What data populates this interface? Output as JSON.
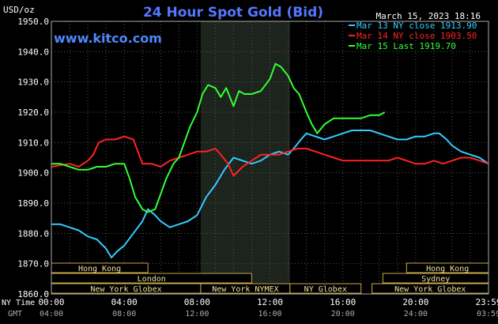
{
  "chart_data": {
    "type": "line",
    "title": "24 Hour Spot Gold (Bid)",
    "ylabel": "USD/oz",
    "timestamp": "March 15, 2023 18:16",
    "watermark": "www.kitco.com",
    "ylim": [
      1860,
      1950
    ],
    "y_ticks": [
      "1860.0",
      "1870.0",
      "1880.0",
      "1890.0",
      "1900.0",
      "1910.0",
      "1920.0",
      "1930.0",
      "1940.0",
      "1950.0"
    ],
    "xlim": [
      0,
      24
    ],
    "x_row_labels": {
      "ny": "NY Time",
      "gmt": "GMT"
    },
    "x_ticks": [
      {
        "x": 0,
        "ny": "00:00",
        "gmt": "04:00"
      },
      {
        "x": 4,
        "ny": "04:00",
        "gmt": "08:00"
      },
      {
        "x": 8,
        "ny": "08:00",
        "gmt": "12:00"
      },
      {
        "x": 12,
        "ny": "12:00",
        "gmt": "16:00"
      },
      {
        "x": 16,
        "ny": "16:00",
        "gmt": "20:00"
      },
      {
        "x": 20,
        "ny": "20:00",
        "gmt": "24:00"
      },
      {
        "x": 24,
        "ny": "23:59",
        "gmt": "03:59"
      }
    ],
    "shaded_range": [
      8.2,
      13.1
    ],
    "sessions": [
      {
        "label": "Hong Kong",
        "start": 0,
        "end": 5.3,
        "row": 1
      },
      {
        "label": "London",
        "start": 0,
        "end": 11,
        "row": 2
      },
      {
        "label": "New York Globex",
        "start": 0,
        "end": 8.2,
        "row": 3
      },
      {
        "label": "New York NYMEX",
        "start": 8.2,
        "end": 13.1,
        "row": 3
      },
      {
        "label": "NY Globex",
        "start": 13.1,
        "end": 17,
        "row": 3
      },
      {
        "label": "Hong Kong",
        "start": 19.5,
        "end": 24,
        "row": 1
      },
      {
        "label": "Sydney",
        "start": 18.2,
        "end": 24,
        "row": 2
      },
      {
        "label": "New York Globex",
        "start": 17.6,
        "end": 24,
        "row": 3
      }
    ],
    "series": [
      {
        "name": "Mar 13 NY close 1913.90",
        "color": "#33ccff",
        "points": [
          [
            0,
            1883
          ],
          [
            0.5,
            1883
          ],
          [
            1,
            1882
          ],
          [
            1.5,
            1881
          ],
          [
            2,
            1879
          ],
          [
            2.5,
            1878
          ],
          [
            3,
            1875
          ],
          [
            3.3,
            1872
          ],
          [
            3.6,
            1874
          ],
          [
            4,
            1876
          ],
          [
            4.5,
            1880
          ],
          [
            5,
            1884
          ],
          [
            5.3,
            1888
          ],
          [
            5.7,
            1886
          ],
          [
            6,
            1884
          ],
          [
            6.5,
            1882
          ],
          [
            7,
            1883
          ],
          [
            7.5,
            1884
          ],
          [
            8,
            1886
          ],
          [
            8.5,
            1892
          ],
          [
            9,
            1896
          ],
          [
            9.5,
            1901
          ],
          [
            10,
            1905
          ],
          [
            10.5,
            1904
          ],
          [
            11,
            1903
          ],
          [
            11.5,
            1904
          ],
          [
            12,
            1906
          ],
          [
            12.5,
            1907
          ],
          [
            13,
            1906
          ],
          [
            13.3,
            1908
          ],
          [
            13.7,
            1911
          ],
          [
            14,
            1913
          ],
          [
            14.5,
            1912
          ],
          [
            15,
            1911
          ],
          [
            15.5,
            1912
          ],
          [
            16,
            1913
          ],
          [
            16.5,
            1914
          ],
          [
            17,
            1914
          ],
          [
            17.5,
            1914
          ],
          [
            18,
            1913
          ],
          [
            18.5,
            1912
          ],
          [
            19,
            1911
          ],
          [
            19.5,
            1911
          ],
          [
            20,
            1912
          ],
          [
            20.5,
            1912
          ],
          [
            21,
            1913
          ],
          [
            21.3,
            1913
          ],
          [
            21.7,
            1911
          ],
          [
            22,
            1909
          ],
          [
            22.5,
            1907
          ],
          [
            23,
            1906
          ],
          [
            23.5,
            1905
          ],
          [
            24,
            1903
          ]
        ]
      },
      {
        "name": "Mar 14 NY close 1903.50",
        "color": "#ff2222",
        "points": [
          [
            0,
            1902
          ],
          [
            1,
            1903
          ],
          [
            1.5,
            1902
          ],
          [
            2,
            1904
          ],
          [
            2.3,
            1906
          ],
          [
            2.6,
            1910
          ],
          [
            3,
            1911
          ],
          [
            3.5,
            1911
          ],
          [
            4,
            1912
          ],
          [
            4.5,
            1911
          ],
          [
            5,
            1903
          ],
          [
            5.5,
            1903
          ],
          [
            6,
            1902
          ],
          [
            6.5,
            1904
          ],
          [
            7,
            1905
          ],
          [
            7.5,
            1906
          ],
          [
            8,
            1907
          ],
          [
            8.5,
            1907
          ],
          [
            9,
            1908
          ],
          [
            9.3,
            1906
          ],
          [
            9.7,
            1903
          ],
          [
            10,
            1899
          ],
          [
            10.5,
            1902
          ],
          [
            11,
            1904
          ],
          [
            11.5,
            1906
          ],
          [
            12,
            1906
          ],
          [
            12.5,
            1906
          ],
          [
            13,
            1907
          ],
          [
            13.5,
            1908
          ],
          [
            14,
            1908
          ],
          [
            14.5,
            1907
          ],
          [
            15,
            1906
          ],
          [
            15.5,
            1905
          ],
          [
            16,
            1904
          ],
          [
            16.5,
            1904
          ],
          [
            17,
            1904
          ],
          [
            17.5,
            1904
          ],
          [
            18,
            1904
          ],
          [
            18.5,
            1904
          ],
          [
            19,
            1905
          ],
          [
            19.5,
            1904
          ],
          [
            20,
            1903
          ],
          [
            20.5,
            1903
          ],
          [
            21,
            1904
          ],
          [
            21.5,
            1903
          ],
          [
            22,
            1904
          ],
          [
            22.5,
            1905
          ],
          [
            23,
            1905
          ],
          [
            23.5,
            1904
          ],
          [
            24,
            1903
          ]
        ]
      },
      {
        "name": "Mar 15 Last 1919.70",
        "color": "#33ff33",
        "points": [
          [
            0,
            1903
          ],
          [
            0.5,
            1903
          ],
          [
            1,
            1902
          ],
          [
            1.5,
            1901
          ],
          [
            2,
            1901
          ],
          [
            2.5,
            1902
          ],
          [
            3,
            1902
          ],
          [
            3.5,
            1903
          ],
          [
            4,
            1903
          ],
          [
            4.3,
            1898
          ],
          [
            4.6,
            1892
          ],
          [
            5,
            1888
          ],
          [
            5.3,
            1887
          ],
          [
            5.7,
            1888
          ],
          [
            6,
            1893
          ],
          [
            6.3,
            1898
          ],
          [
            6.7,
            1903
          ],
          [
            7,
            1905
          ],
          [
            7.3,
            1910
          ],
          [
            7.6,
            1915
          ],
          [
            8,
            1920
          ],
          [
            8.3,
            1926
          ],
          [
            8.6,
            1929
          ],
          [
            9,
            1928
          ],
          [
            9.3,
            1925
          ],
          [
            9.6,
            1928
          ],
          [
            10,
            1922
          ],
          [
            10.3,
            1927
          ],
          [
            10.6,
            1926
          ],
          [
            11,
            1926
          ],
          [
            11.5,
            1927
          ],
          [
            12,
            1931
          ],
          [
            12.3,
            1936
          ],
          [
            12.6,
            1935
          ],
          [
            13,
            1932
          ],
          [
            13.3,
            1928
          ],
          [
            13.6,
            1926
          ],
          [
            14,
            1920
          ],
          [
            14.3,
            1916
          ],
          [
            14.6,
            1913
          ],
          [
            15,
            1916
          ],
          [
            15.5,
            1918
          ],
          [
            16,
            1918
          ],
          [
            16.5,
            1918
          ],
          [
            17,
            1918
          ],
          [
            17.5,
            1919
          ],
          [
            18,
            1919
          ],
          [
            18.3,
            1920
          ]
        ]
      }
    ]
  }
}
